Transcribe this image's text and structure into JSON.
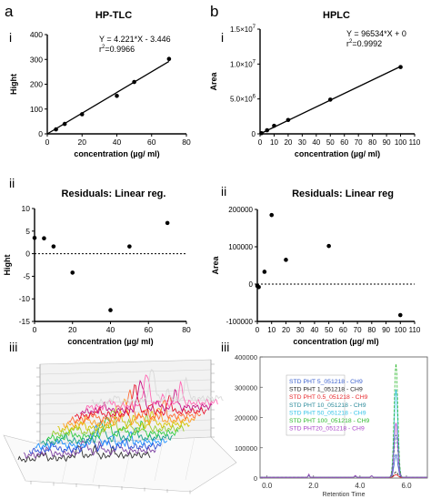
{
  "panel_letters": [
    "a",
    "b"
  ],
  "row_numerals": [
    "i",
    "ii",
    "iii"
  ],
  "colors": {
    "line": "#000000",
    "points": "#000000",
    "zero_line": "#000000"
  },
  "chart_data": [
    {
      "id": "hptlc-calibration",
      "type": "scatter",
      "title": "HP-TLC",
      "xlabel": "concentration (µg/ ml)",
      "ylabel": "Hight",
      "xlim": [
        0,
        80
      ],
      "ylim": [
        0,
        400
      ],
      "xticks": [
        0,
        20,
        40,
        60,
        80
      ],
      "yticks": [
        0,
        100,
        200,
        300,
        400
      ],
      "equation": "Y = 4.221*X - 3.446",
      "r2_prefix": "r",
      "r2_sup": "2",
      "r2_rest": "=0.9966",
      "x": [
        5,
        10,
        20,
        40,
        50,
        70
      ],
      "y": [
        18,
        40,
        79,
        153,
        209,
        302
      ],
      "fit": {
        "slope": 4.221,
        "intercept": -3.446,
        "x_range": [
          0,
          70
        ]
      },
      "grid": false
    },
    {
      "id": "hplc-calibration",
      "type": "scatter",
      "title": "HPLC",
      "xlabel": "concentration (µg/ ml)",
      "ylabel": "Area",
      "xlim": [
        0,
        110
      ],
      "ylim": [
        0,
        15000000
      ],
      "xticks": [
        0,
        10,
        20,
        30,
        40,
        50,
        60,
        70,
        80,
        90,
        100,
        110
      ],
      "yticks": [
        0,
        5000000,
        10000000,
        15000000
      ],
      "ytick_labels": [
        {
          "base": "0",
          "exp": ""
        },
        {
          "base": "5.0×10",
          "exp": "6"
        },
        {
          "base": "1.0×10",
          "exp": "7"
        },
        {
          "base": "1.5×10",
          "exp": "7"
        }
      ],
      "equation": "Y = 96534*X + 0",
      "r2_prefix": "r",
      "r2_sup": "2",
      "r2_rest": "=0.9992",
      "x": [
        1,
        5,
        10,
        20,
        50,
        100
      ],
      "y": [
        96500,
        520000,
        1150000,
        1990000,
        4900000,
        9570000
      ],
      "fit": {
        "slope": 96534,
        "intercept": 0,
        "x_range": [
          0,
          100
        ]
      },
      "grid": false
    },
    {
      "id": "hptlc-residuals",
      "type": "scatter",
      "title": "Residuals: Linear reg.",
      "xlabel": "concentration (µg/ ml)",
      "ylabel": "Hight",
      "xlim": [
        0,
        80
      ],
      "ylim": [
        -15,
        10
      ],
      "xticks": [
        0,
        20,
        40,
        60,
        80
      ],
      "yticks": [
        -15,
        -10,
        -5,
        0,
        5,
        10
      ],
      "x": [
        0,
        5,
        10,
        20,
        40,
        50,
        70
      ],
      "y": [
        3.5,
        3.4,
        1.6,
        -4.2,
        -12.5,
        1.6,
        6.8
      ],
      "zero_line": true,
      "grid": false
    },
    {
      "id": "hplc-residuals",
      "type": "scatter",
      "title": "Residuals: Linear reg",
      "xlabel": "concentration (µg/ ml)",
      "ylabel": "Area",
      "xlim": [
        0,
        110
      ],
      "ylim": [
        -100000,
        200000
      ],
      "xticks": [
        0,
        10,
        20,
        30,
        40,
        50,
        60,
        70,
        80,
        90,
        100,
        110
      ],
      "yticks": [
        -100000,
        0,
        100000,
        200000
      ],
      "x": [
        0,
        1,
        5,
        10,
        20,
        50,
        100
      ],
      "y": [
        -5000,
        -8000,
        33000,
        185000,
        65000,
        102000,
        -83000
      ],
      "zero_line": true,
      "grid": false
    },
    {
      "id": "hptlc-3d-densitogram",
      "type": "line",
      "description_visible": false,
      "axis_tick_labels_legible": false,
      "trace_colors": [
        "#333333",
        "#7b3fa0",
        "#2c4fd6",
        "#1e90ff",
        "#16a085",
        "#2ecc40",
        "#9acd32",
        "#d4c400",
        "#ff9f1c",
        "#ff6b35",
        "#e8112d",
        "#c71585",
        "#ff69b4",
        "#d9d9d9"
      ],
      "grid": true
    },
    {
      "id": "hplc-chromatograms",
      "type": "line",
      "xlabel": "Retention Time",
      "xticks": [
        0.0,
        2.0,
        4.0,
        6.0
      ],
      "xlim": [
        -0.3,
        6.9
      ],
      "ylim": [
        0,
        400000
      ],
      "yticks": [
        0,
        100000,
        200000,
        300000,
        400000
      ],
      "ytick_labels": [
        "0",
        "100000",
        "200000",
        "300000",
        "400000"
      ],
      "legend_position": "top-left",
      "series": [
        {
          "name": "STD PHT 5_051218 - CH9",
          "color": "#3a5fcd",
          "peak": 75000
        },
        {
          "name": "STD PHT 1_051218 - CH9",
          "color": "#222222",
          "peak": 18000
        },
        {
          "name": "STD PHT 0.5_051218 - CH9",
          "color": "#e8292d",
          "peak": 9000
        },
        {
          "name": "STD PHT 10_051218 - CH9",
          "color": "#2a8a9a",
          "peak": 140000
        },
        {
          "name": "STD PHT 50_051218 - CH9",
          "color": "#35c4e8",
          "peak": 290000
        },
        {
          "name": "STD PHT 100_051218 - CH9",
          "color": "#2fb82f",
          "peak": 375000
        },
        {
          "name": "STD PHT20_051218 - CH9",
          "color": "#a845c8",
          "peak": 180000
        }
      ],
      "peak_retention_time": 5.55,
      "grid": false
    }
  ]
}
